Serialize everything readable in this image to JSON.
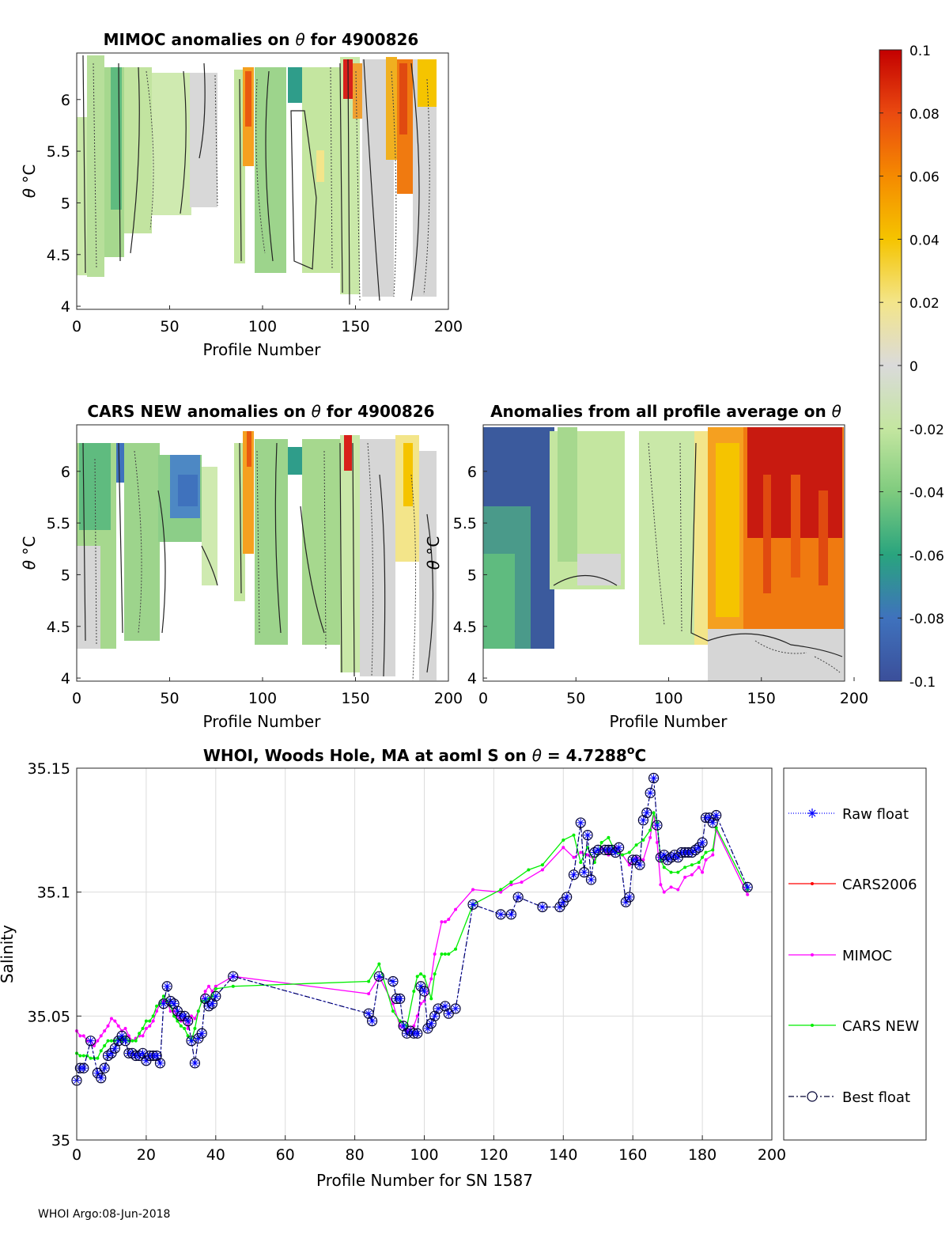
{
  "panels": {
    "mimoc": {
      "title_prefix": "MIMOC anomalies on ",
      "title_sym": "θ",
      "title_suffix": "  for 4900826",
      "xlabel": "Profile Number",
      "ylabel_sym": "θ",
      "ylabel_unit": " °C",
      "xticks": [
        "0",
        "50",
        "100",
        "150",
        "200"
      ],
      "yticks": [
        "4",
        "4.5",
        "5",
        "5.5",
        "6"
      ]
    },
    "cars": {
      "title_prefix": "CARS NEW anomalies on ",
      "title_sym": "θ",
      "title_suffix": " for 4900826",
      "xlabel": "Profile Number",
      "ylabel_sym": "θ",
      "ylabel_unit": " °C",
      "xticks": [
        "0",
        "50",
        "100",
        "150",
        "200"
      ],
      "yticks": [
        "4",
        "4.5",
        "5",
        "5.5",
        "6"
      ]
    },
    "avg": {
      "title_prefix": "Anomalies from all profile average on ",
      "title_sym": "θ",
      "title_suffix": "",
      "xlabel": "Profile Number",
      "ylabel_sym": "θ",
      "ylabel_unit": " °C",
      "xticks": [
        "0",
        "50",
        "100",
        "150",
        "200"
      ],
      "yticks": [
        "4",
        "4.5",
        "5",
        "5.5",
        "6"
      ]
    }
  },
  "colorbar": {
    "ticks": [
      "0.1",
      "0.08",
      "0.06",
      "0.04",
      "0.02",
      "0",
      "-0.02",
      "-0.04",
      "-0.06",
      "-0.08",
      "-0.1"
    ],
    "range": [
      -0.1,
      0.1
    ]
  },
  "chart_data": {
    "type": "line",
    "title_prefix": "WHOI, Woods Hole, MA at aoml S on ",
    "title_sym": "θ",
    "title_suffix": " = 4.7288",
    "title_deg": "o",
    "title_unit": "C",
    "xlabel": "Profile Number for SN 1587",
    "ylabel": "Salinity",
    "xlim": [
      0,
      200
    ],
    "ylim": [
      35,
      35.15
    ],
    "xticks": [
      "0",
      "20",
      "40",
      "60",
      "80",
      "100",
      "120",
      "140",
      "160",
      "180",
      "200"
    ],
    "yticks": [
      "35",
      "35.05",
      "35.1",
      "35.15"
    ],
    "legend": [
      "Raw float",
      "CARS2006",
      "MIMOC",
      "CARS NEW",
      "Best float"
    ],
    "colors": {
      "raw": "#0000ff",
      "cars2006": "#ff0000",
      "mimoc": "#ff00ff",
      "carsnew": "#00ee00",
      "best": "#000033"
    },
    "series": [
      {
        "name": "Best float",
        "x": [
          0,
          1,
          2,
          4,
          6,
          7,
          8,
          9,
          10,
          11,
          12,
          13,
          14,
          15,
          16,
          17,
          18,
          19,
          20,
          21,
          22,
          23,
          24,
          25,
          26,
          27,
          28,
          29,
          30,
          31,
          32,
          33,
          34,
          35,
          36,
          37,
          38,
          39,
          40,
          45,
          84,
          85,
          87,
          91,
          92,
          93,
          94,
          95,
          96,
          97,
          98,
          99,
          100,
          101,
          102,
          103,
          104,
          106,
          107,
          109,
          114,
          122,
          125,
          127,
          134,
          139,
          140,
          141,
          143,
          145,
          146,
          147,
          148,
          149,
          150,
          152,
          153,
          154,
          155,
          156,
          158,
          159,
          160,
          161,
          162,
          163,
          164,
          165,
          166,
          167,
          168,
          169,
          170,
          171,
          172,
          173,
          174,
          175,
          176,
          177,
          178,
          179,
          180,
          181,
          182,
          183,
          184,
          193
        ],
        "y": [
          35.024,
          35.029,
          35.029,
          35.04,
          35.027,
          35.025,
          35.029,
          35.034,
          35.035,
          35.037,
          35.04,
          35.042,
          35.04,
          35.035,
          35.035,
          35.034,
          35.034,
          35.035,
          35.032,
          35.034,
          35.034,
          35.034,
          35.031,
          35.055,
          35.062,
          35.056,
          35.055,
          35.052,
          35.05,
          35.05,
          35.048,
          35.04,
          35.031,
          35.041,
          35.043,
          35.057,
          35.054,
          35.055,
          35.058,
          35.066,
          35.051,
          35.048,
          35.066,
          35.064,
          35.057,
          35.057,
          35.046,
          35.043,
          35.044,
          35.043,
          35.043,
          35.062,
          35.06,
          35.045,
          35.047,
          35.05,
          35.053,
          35.054,
          35.051,
          35.053,
          35.095,
          35.091,
          35.091,
          35.098,
          35.094,
          35.094,
          35.096,
          35.098,
          35.107,
          35.128,
          35.108,
          35.123,
          35.105,
          35.116,
          35.117,
          35.117,
          35.117,
          35.117,
          35.116,
          35.118,
          35.096,
          35.098,
          35.113,
          35.113,
          35.111,
          35.129,
          35.132,
          35.14,
          35.146,
          35.127,
          35.114,
          35.115,
          35.113,
          35.114,
          35.115,
          35.114,
          35.116,
          35.116,
          35.116,
          35.116,
          35.117,
          35.118,
          35.12,
          35.13,
          35.13,
          35.128,
          35.131,
          35.102
        ]
      },
      {
        "name": "MIMOC",
        "x": [
          0,
          1,
          2,
          3,
          4,
          5,
          6,
          7,
          8,
          9,
          10,
          11,
          12,
          13,
          14,
          15,
          16,
          17,
          18,
          19,
          20,
          21,
          22,
          23,
          24,
          25,
          26,
          27,
          28,
          29,
          30,
          31,
          32,
          33,
          34,
          35,
          36,
          37,
          38,
          39,
          40,
          45,
          84,
          87,
          91,
          93,
          95,
          97,
          98,
          99,
          100,
          102,
          103,
          105,
          106,
          107,
          109,
          114,
          122,
          125,
          128,
          134,
          140,
          143,
          145,
          147,
          149,
          151,
          153,
          155,
          157,
          159,
          161,
          163,
          165,
          166,
          167,
          168,
          169,
          171,
          173,
          175,
          177,
          179,
          180,
          181,
          183,
          184,
          193
        ],
        "y": [
          35.044,
          35.042,
          35.042,
          35.04,
          35.04,
          35.038,
          35.04,
          35.042,
          35.044,
          35.046,
          35.049,
          35.048,
          35.046,
          35.044,
          35.045,
          35.042,
          35.04,
          35.041,
          35.042,
          35.042,
          35.045,
          35.046,
          35.048,
          35.052,
          35.055,
          35.056,
          35.056,
          35.052,
          35.052,
          35.05,
          35.048,
          35.049,
          35.045,
          35.05,
          35.049,
          35.052,
          35.056,
          35.06,
          35.062,
          35.06,
          35.062,
          35.066,
          35.059,
          35.066,
          35.055,
          35.046,
          35.044,
          35.046,
          35.05,
          35.055,
          35.056,
          35.065,
          35.075,
          35.088,
          35.088,
          35.089,
          35.093,
          35.101,
          35.1,
          35.103,
          35.104,
          35.109,
          35.118,
          35.114,
          35.116,
          35.115,
          35.113,
          35.118,
          35.115,
          35.118,
          35.115,
          35.111,
          35.114,
          35.113,
          35.122,
          35.132,
          35.12,
          35.103,
          35.1,
          35.102,
          35.101,
          35.106,
          35.107,
          35.11,
          35.108,
          35.113,
          35.115,
          35.125,
          35.099
        ]
      },
      {
        "name": "CARS NEW",
        "x": [
          0,
          1,
          2,
          3,
          4,
          5,
          6,
          7,
          8,
          9,
          10,
          11,
          12,
          13,
          14,
          15,
          16,
          17,
          18,
          19,
          20,
          21,
          22,
          23,
          24,
          25,
          26,
          27,
          28,
          29,
          30,
          31,
          32,
          33,
          34,
          35,
          36,
          37,
          38,
          39,
          40,
          45,
          84,
          87,
          91,
          93,
          95,
          97,
          98,
          99,
          100,
          102,
          103,
          105,
          106,
          107,
          109,
          114,
          122,
          125,
          130,
          134,
          140,
          143,
          145,
          147,
          149,
          151,
          153,
          155,
          157,
          159,
          161,
          163,
          165,
          166,
          167,
          168,
          169,
          171,
          173,
          175,
          177,
          179,
          180,
          181,
          183,
          184,
          193
        ],
        "y": [
          35.035,
          35.034,
          35.034,
          35.034,
          35.033,
          35.033,
          35.033,
          35.036,
          35.038,
          35.04,
          35.04,
          35.04,
          35.041,
          35.04,
          35.041,
          35.04,
          35.04,
          35.04,
          35.043,
          35.045,
          35.048,
          35.048,
          35.05,
          35.054,
          35.055,
          35.058,
          35.056,
          35.054,
          35.05,
          35.048,
          35.046,
          35.045,
          35.042,
          35.04,
          35.045,
          35.052,
          35.056,
          35.056,
          35.057,
          35.058,
          35.061,
          35.062,
          35.064,
          35.071,
          35.052,
          35.048,
          35.046,
          35.06,
          35.066,
          35.067,
          35.066,
          35.057,
          35.067,
          35.075,
          35.075,
          35.075,
          35.077,
          35.095,
          35.101,
          35.104,
          35.109,
          35.111,
          35.121,
          35.123,
          35.112,
          35.118,
          35.112,
          35.12,
          35.122,
          35.116,
          35.115,
          35.116,
          35.119,
          35.121,
          35.125,
          35.132,
          35.128,
          35.113,
          35.11,
          35.108,
          35.108,
          35.11,
          35.111,
          35.112,
          35.114,
          35.116,
          35.117,
          35.126,
          35.101
        ]
      }
    ]
  },
  "footer": "WHOI Argo:08-Jun-2018"
}
